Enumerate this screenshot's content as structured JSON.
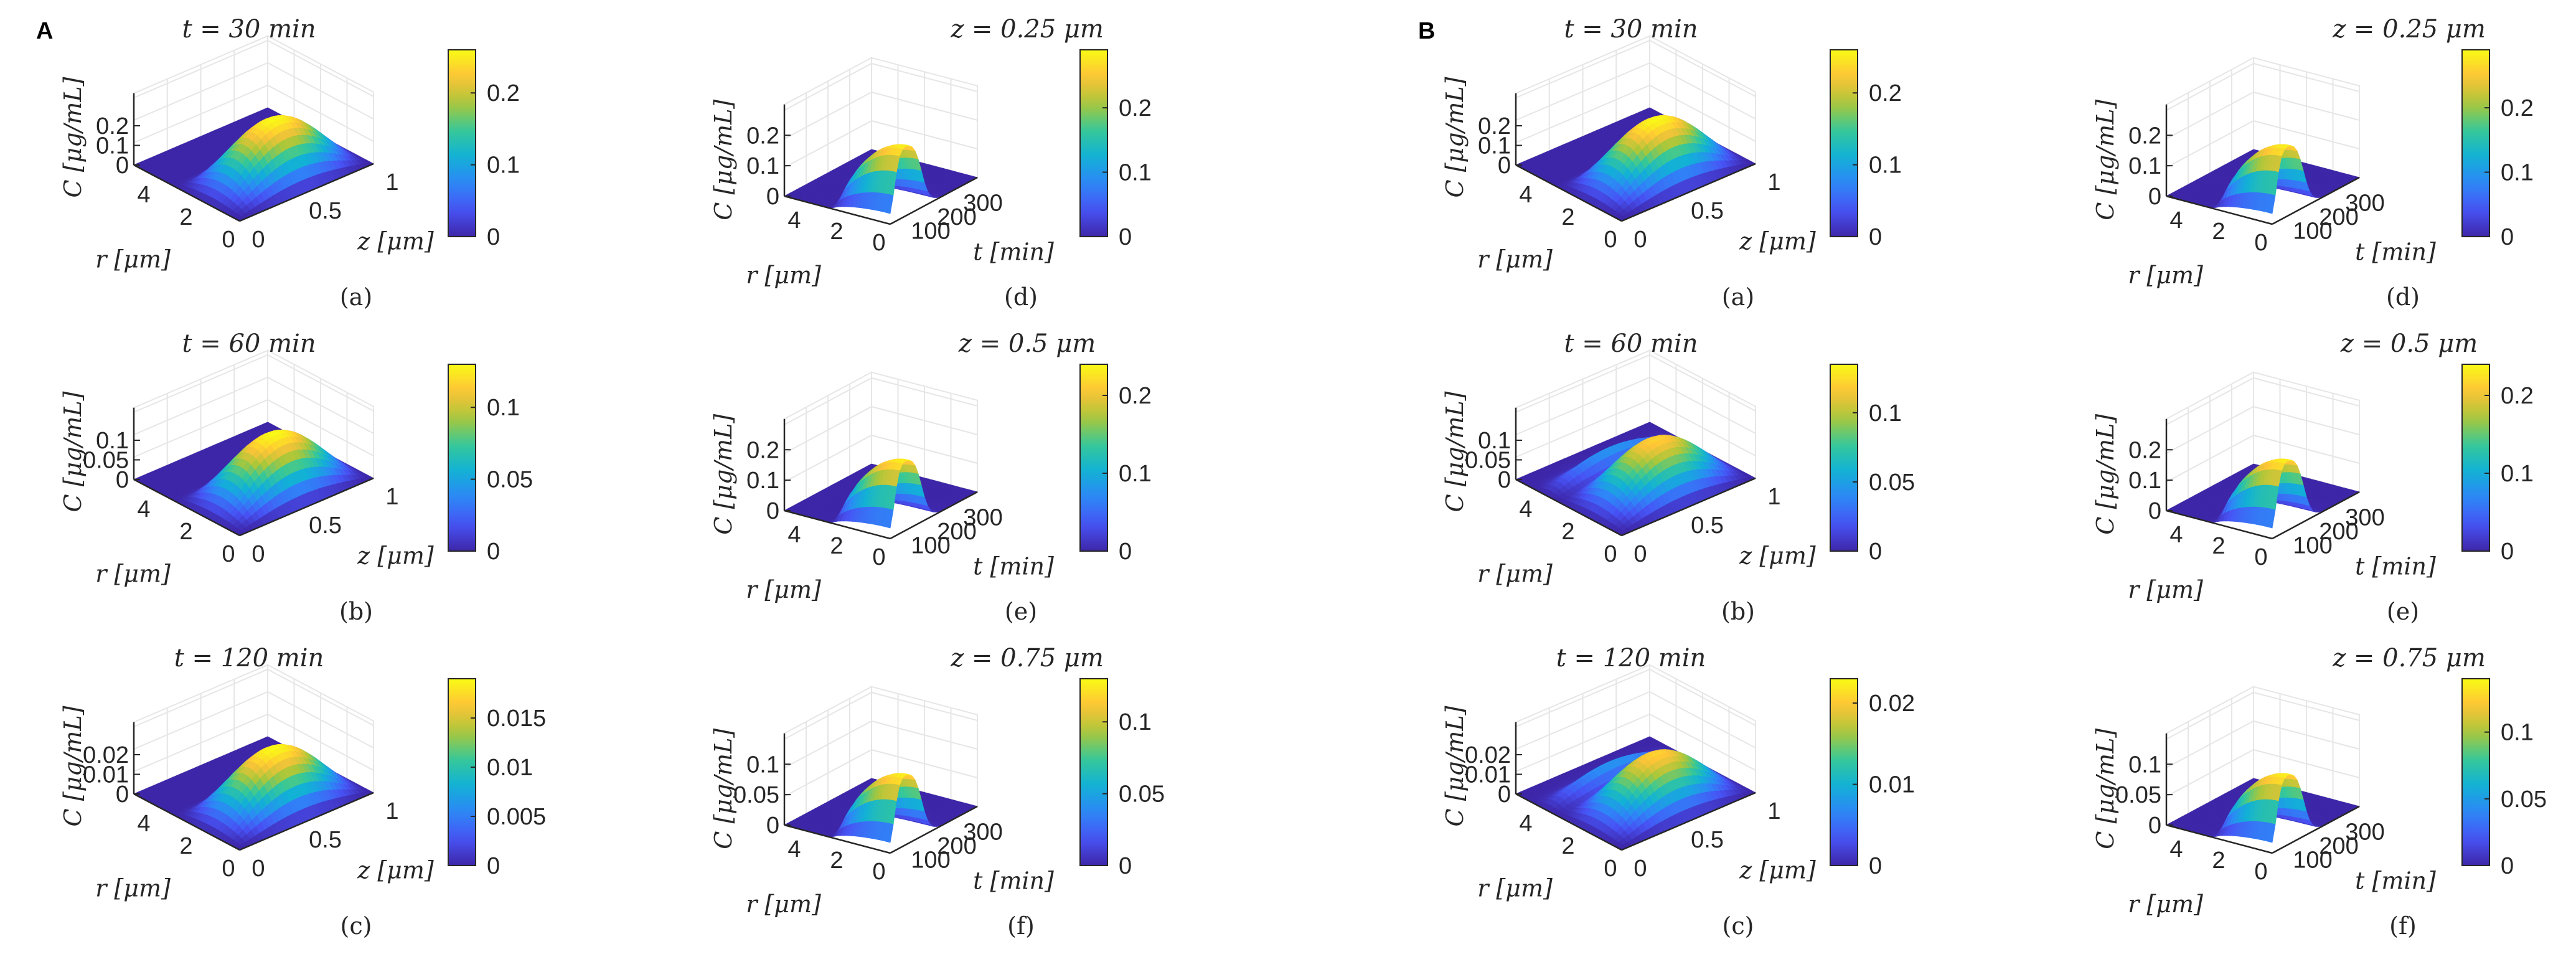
{
  "figure": {
    "type": "3d-surface-grid",
    "colormap": "parula",
    "axis_labels": {
      "c": "C [μg/mL]",
      "r": "r [μm]",
      "z": "z [μm]",
      "t": "t [min]"
    }
  },
  "chart_data": [
    {
      "panel": "A",
      "plots": [
        {
          "sub": "(a)",
          "title": "t = 30 min",
          "type": "surface",
          "x_axis": "z",
          "r_ticks": [
            "0",
            "2",
            "4"
          ],
          "x_ticks": [
            "0",
            "0.5",
            "1"
          ],
          "c_ticks": [
            "0",
            "0.1",
            "0.2"
          ],
          "cbar_ticks": [
            "0",
            "0.1",
            "0.2"
          ],
          "cmax": 0.26,
          "shape": "dome",
          "ridge": false
        },
        {
          "sub": "(b)",
          "title": "t = 60 min",
          "type": "surface",
          "x_axis": "z",
          "r_ticks": [
            "0",
            "2",
            "4"
          ],
          "x_ticks": [
            "0",
            "0.5",
            "1"
          ],
          "c_ticks": [
            "0",
            "0.05",
            "0.1"
          ],
          "cbar_ticks": [
            "0",
            "0.05",
            "0.1"
          ],
          "cmax": 0.13,
          "shape": "dome",
          "ridge": false
        },
        {
          "sub": "(c)",
          "title": "t = 120 min",
          "type": "surface",
          "x_axis": "z",
          "r_ticks": [
            "0",
            "2",
            "4"
          ],
          "x_ticks": [
            "0",
            "0.5",
            "1"
          ],
          "c_ticks": [
            "0",
            "0.01",
            "0.02"
          ],
          "cbar_ticks": [
            "0",
            "0.005",
            "0.01",
            "0.015"
          ],
          "cmax": 0.019,
          "shape": "dome",
          "ridge": false
        },
        {
          "sub": "(d)",
          "title": "z = 0.25 μm",
          "type": "surface",
          "x_axis": "t",
          "r_ticks": [
            "0",
            "2",
            "4"
          ],
          "x_ticks": [
            "100",
            "200",
            "300"
          ],
          "c_ticks": [
            "0",
            "0.1",
            "0.2"
          ],
          "cbar_ticks": [
            "0",
            "0.1",
            "0.2"
          ],
          "cmax": 0.29,
          "shape": "plateau",
          "ridge": false
        },
        {
          "sub": "(e)",
          "title": "z = 0.5 μm",
          "type": "surface",
          "x_axis": "t",
          "r_ticks": [
            "0",
            "2",
            "4"
          ],
          "x_ticks": [
            "100",
            "200",
            "300"
          ],
          "c_ticks": [
            "0",
            "0.1",
            "0.2"
          ],
          "cbar_ticks": [
            "0",
            "0.1",
            "0.2"
          ],
          "cmax": 0.24,
          "shape": "plateau",
          "ridge": false
        },
        {
          "sub": "(f)",
          "title": "z = 0.75 μm",
          "type": "surface",
          "x_axis": "t",
          "r_ticks": [
            "0",
            "2",
            "4"
          ],
          "x_ticks": [
            "100",
            "200",
            "300"
          ],
          "c_ticks": [
            "0",
            "0.05",
            "0.1"
          ],
          "cbar_ticks": [
            "0",
            "0.05",
            "0.1"
          ],
          "cmax": 0.13,
          "shape": "plateau",
          "ridge": false
        }
      ]
    },
    {
      "panel": "B",
      "plots": [
        {
          "sub": "(a)",
          "title": "t = 30 min",
          "type": "surface",
          "x_axis": "z",
          "r_ticks": [
            "0",
            "2",
            "4"
          ],
          "x_ticks": [
            "0",
            "0.5",
            "1"
          ],
          "c_ticks": [
            "0",
            "0.1",
            "0.2"
          ],
          "cbar_ticks": [
            "0",
            "0.1",
            "0.2"
          ],
          "cmax": 0.26,
          "shape": "dome",
          "ridge": false
        },
        {
          "sub": "(b)",
          "title": "t = 60 min",
          "type": "surface",
          "x_axis": "z",
          "r_ticks": [
            "0",
            "2",
            "4"
          ],
          "x_ticks": [
            "0",
            "0.5",
            "1"
          ],
          "c_ticks": [
            "0",
            "0.05",
            "0.1"
          ],
          "cbar_ticks": [
            "0",
            "0.05",
            "0.1"
          ],
          "cmax": 0.135,
          "shape": "dome",
          "ridge": true
        },
        {
          "sub": "(c)",
          "title": "t = 120 min",
          "type": "surface",
          "x_axis": "z",
          "r_ticks": [
            "0",
            "2",
            "4"
          ],
          "x_ticks": [
            "0",
            "0.5",
            "1"
          ],
          "c_ticks": [
            "0",
            "0.01",
            "0.02"
          ],
          "cbar_ticks": [
            "0",
            "0.01",
            "0.02"
          ],
          "cmax": 0.023,
          "shape": "dome",
          "ridge": true
        },
        {
          "sub": "(d)",
          "title": "z = 0.25 μm",
          "type": "surface",
          "x_axis": "t",
          "r_ticks": [
            "0",
            "2",
            "4"
          ],
          "x_ticks": [
            "100",
            "200",
            "300"
          ],
          "c_ticks": [
            "0",
            "0.1",
            "0.2"
          ],
          "cbar_ticks": [
            "0",
            "0.1",
            "0.2"
          ],
          "cmax": 0.29,
          "shape": "plateau",
          "ridge": true
        },
        {
          "sub": "(e)",
          "title": "z = 0.5 μm",
          "type": "surface",
          "x_axis": "t",
          "r_ticks": [
            "0",
            "2",
            "4"
          ],
          "x_ticks": [
            "100",
            "200",
            "300"
          ],
          "c_ticks": [
            "0",
            "0.1",
            "0.2"
          ],
          "cbar_ticks": [
            "0",
            "0.1",
            "0.2"
          ],
          "cmax": 0.24,
          "shape": "plateau",
          "ridge": true
        },
        {
          "sub": "(f)",
          "title": "z = 0.75 μm",
          "type": "surface",
          "x_axis": "t",
          "r_ticks": [
            "0",
            "2",
            "4"
          ],
          "x_ticks": [
            "100",
            "200",
            "300"
          ],
          "c_ticks": [
            "0",
            "0.05",
            "0.1"
          ],
          "cbar_ticks": [
            "0",
            "0.05",
            "0.1"
          ],
          "cmax": 0.14,
          "shape": "plateau",
          "ridge": true
        }
      ]
    }
  ]
}
